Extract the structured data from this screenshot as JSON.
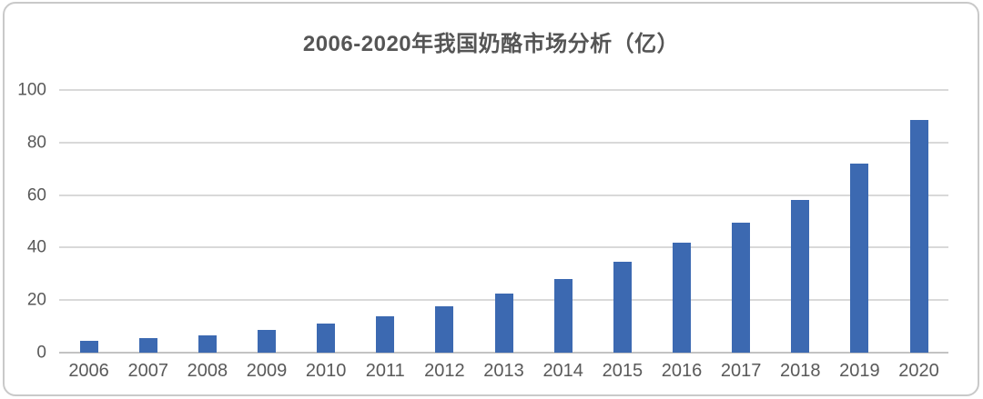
{
  "chart_data": {
    "type": "bar",
    "title": "2006-2020年我国奶酪市场分析（亿）",
    "categories": [
      "2006",
      "2007",
      "2008",
      "2009",
      "2010",
      "2011",
      "2012",
      "2013",
      "2014",
      "2015",
      "2016",
      "2017",
      "2018",
      "2019",
      "2020"
    ],
    "values": [
      4.5,
      5.5,
      6.5,
      8.5,
      11,
      14,
      17.5,
      22.5,
      28,
      34.5,
      42,
      49.5,
      58,
      72,
      88.5
    ],
    "xlabel": "",
    "ylabel": "",
    "ylim": [
      0,
      100
    ],
    "yticks": [
      0,
      20,
      40,
      60,
      80,
      100
    ],
    "grid": true,
    "legend": false,
    "colors": {
      "bar": "#3c69b1",
      "gridline": "#d9d9d9",
      "baseline": "#c3c3c3",
      "axis_labels": "#595959",
      "title": "#555555",
      "card_border": "#c9c9c9",
      "background": "#ffffff"
    }
  }
}
